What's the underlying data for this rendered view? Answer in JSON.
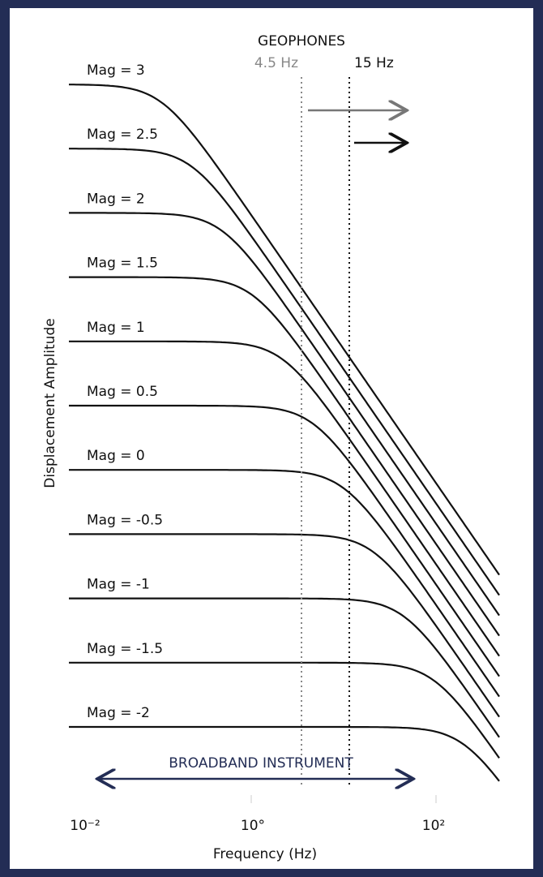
{
  "geophones": {
    "title": "GEOPHONES",
    "low": "4.5 Hz",
    "high": "15 Hz"
  },
  "broadband": "BROADBAND INSTRUMENT",
  "curves": [
    "Mag = 3",
    "Mag = 2.5",
    "Mag = 2",
    "Mag = 1.5",
    "Mag = 1",
    "Mag = 0.5",
    "Mag = 0",
    "Mag = -0.5",
    "Mag = -1",
    "Mag = -1.5",
    "Mag = -2"
  ],
  "x_axis": {
    "title": "Frequency (Hz)",
    "ticks": [
      "10⁻²",
      "10°",
      "10²"
    ]
  },
  "y_axis": {
    "title": "Displacement Amplitude"
  }
}
